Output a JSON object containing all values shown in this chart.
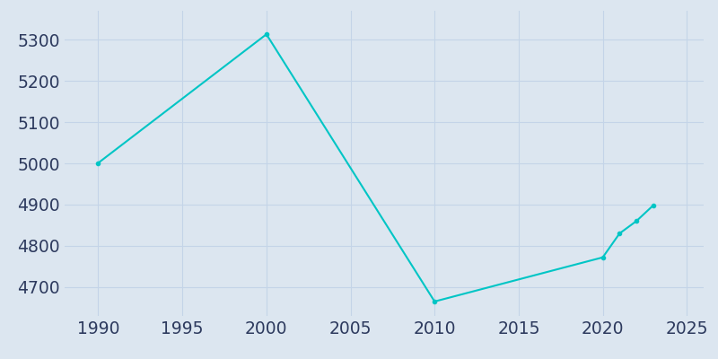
{
  "years": [
    1990,
    2000,
    2010,
    2020,
    2021,
    2022,
    2023
  ],
  "population": [
    5001,
    5313,
    4665,
    4772,
    4830,
    4860,
    4898
  ],
  "line_color": "#00C5C5",
  "marker": "o",
  "marker_size": 3,
  "background_color": "#dce6f0",
  "grid_color": "#c4d4e8",
  "xlim": [
    1988,
    2026
  ],
  "ylim": [
    4630,
    5370
  ],
  "xticks": [
    1990,
    1995,
    2000,
    2005,
    2010,
    2015,
    2020,
    2025
  ],
  "yticks": [
    4700,
    4800,
    4900,
    5000,
    5100,
    5200,
    5300
  ],
  "tick_color": "#2d3a5e",
  "tick_fontsize": 13.5,
  "linewidth": 1.5
}
